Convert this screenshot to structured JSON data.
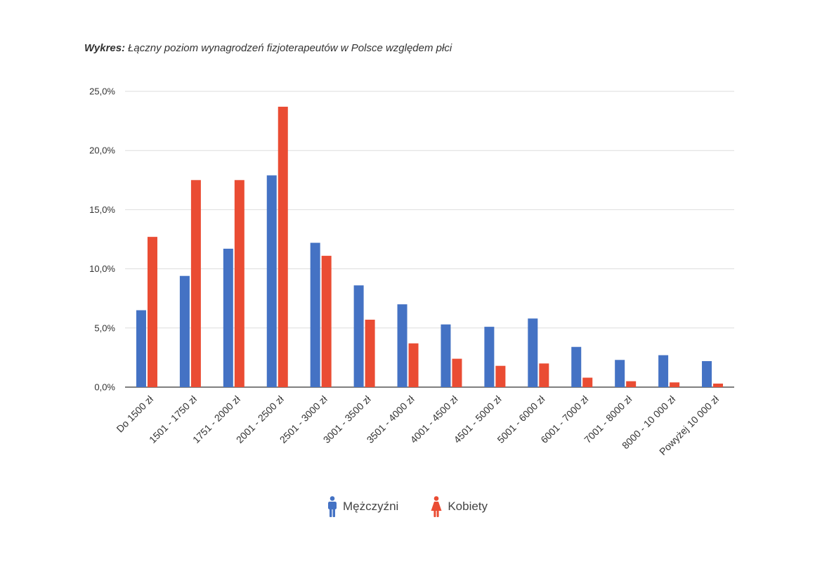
{
  "title": {
    "prefix": "Wykres:",
    "text": "Łączny poziom wynagrodzeń fizjoterapeutów w Polsce względem płci"
  },
  "legend": {
    "men_label": "Mężczyźni",
    "women_label": "Kobiety",
    "men_icon": "male-person-icon",
    "women_icon": "female-person-icon"
  },
  "colors": {
    "men": "#4472c4",
    "women": "#ea4c33",
    "grid": "#dddddd",
    "axis": "#333333"
  },
  "chart_data": {
    "type": "bar",
    "title": "Wykres: Łączny poziom wynagrodzeń fizjoterapeutów w Polsce względem płci",
    "xlabel": "",
    "ylabel": "",
    "ylim": [
      0,
      25
    ],
    "yticks": [
      0,
      5,
      10,
      15,
      20,
      25
    ],
    "ytick_labels": [
      "0,0%",
      "5,0%",
      "10,0%",
      "15,0%",
      "20,0%",
      "25,0%"
    ],
    "grid": true,
    "legend_position": "bottom",
    "categories": [
      "Do 1500 zł",
      "1501 - 1750 zł",
      "1751 - 2000 zł",
      "2001 - 2500 zł",
      "2501 - 3000 zł",
      "3001 - 3500 zł",
      "3501 - 4000 zł",
      "4001 - 4500 zł",
      "4501 - 5000 zł",
      "5001 - 6000 zł",
      "6001 - 7000 zł",
      "7001 - 8000 zł",
      "8000 - 10 000 zł",
      "Powyżej 10 000 zł"
    ],
    "series": [
      {
        "name": "Mężczyźni",
        "color": "#4472c4",
        "values": [
          6.5,
          9.4,
          11.7,
          17.9,
          12.2,
          8.6,
          7.0,
          5.3,
          5.1,
          5.8,
          3.4,
          2.3,
          2.7,
          2.2
        ]
      },
      {
        "name": "Kobiety",
        "color": "#ea4c33",
        "values": [
          12.7,
          17.5,
          17.5,
          23.7,
          11.1,
          5.7,
          3.7,
          2.4,
          1.8,
          2.0,
          0.8,
          0.5,
          0.4,
          0.3
        ]
      }
    ]
  }
}
